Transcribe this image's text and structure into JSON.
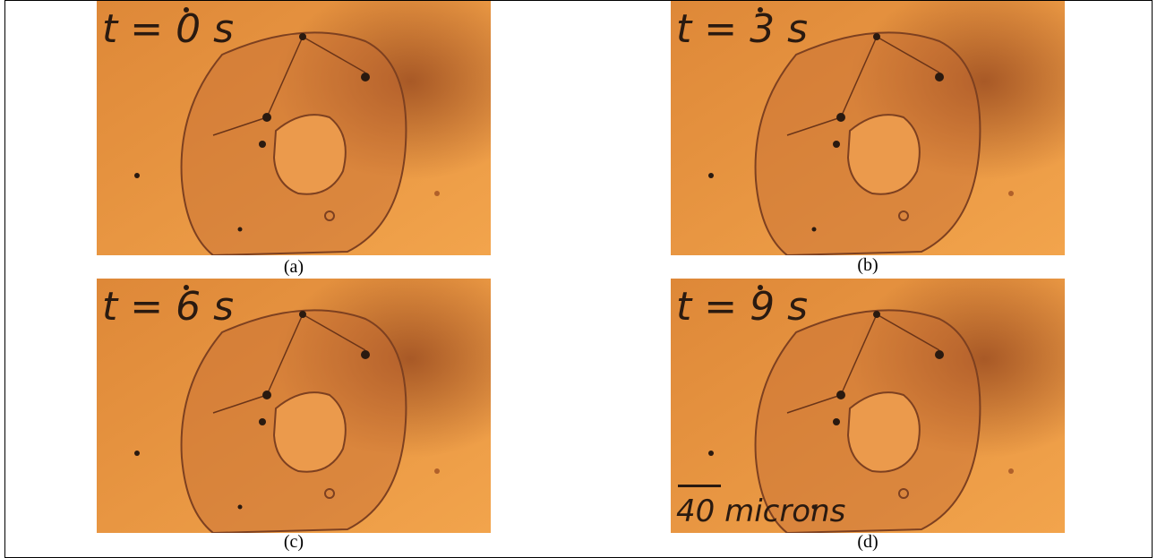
{
  "panels": [
    {
      "time_label": "t = 0 s",
      "caption": "(a)"
    },
    {
      "time_label": "t = 3 s",
      "caption": "(b)"
    },
    {
      "time_label": "t = 6 s",
      "caption": "(c)"
    },
    {
      "time_label": "t = 9 s",
      "caption": "(d)"
    }
  ],
  "scale_bar": "40 microns"
}
